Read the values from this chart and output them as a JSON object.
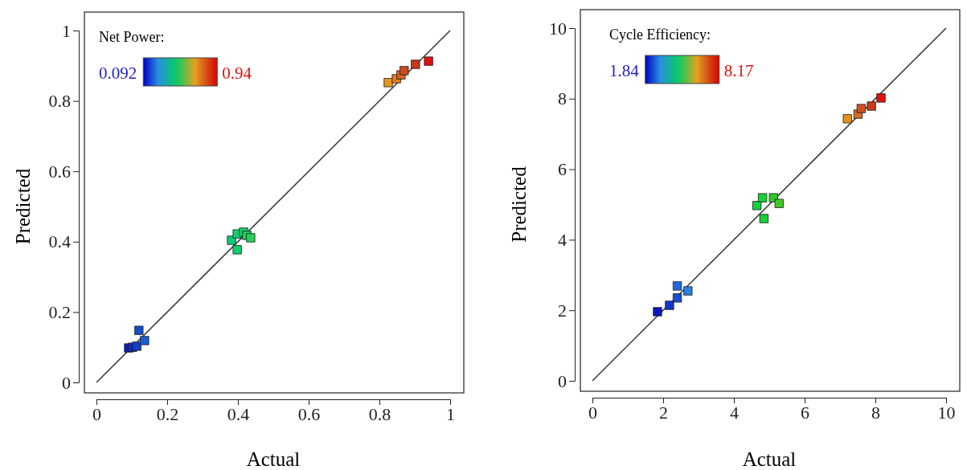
{
  "chart_data": [
    {
      "type": "scatter",
      "xlabel": "Actual",
      "ylabel": "Predicted",
      "clabel": "Net Power:",
      "annotations": [
        "0.092",
        "0.94"
      ],
      "marker": "square",
      "grid": false,
      "xlim": [
        0,
        1
      ],
      "ylim": [
        0,
        1
      ],
      "xticks": [
        0,
        0.2,
        0.4,
        0.6,
        0.8,
        1
      ],
      "yticks": [
        0,
        0.2,
        0.4,
        0.6,
        0.8,
        1
      ],
      "series": [
        {
          "type": "line",
          "marker": "none",
          "color": "#333333",
          "x": [
            0,
            1
          ],
          "values": [
            0,
            1
          ]
        },
        {
          "x": [
            0.091,
            0.102,
            0.114,
            0.136,
            0.12,
            0.382,
            0.398,
            0.416,
            0.425,
            0.436,
            0.398,
            0.825,
            0.848,
            0.861,
            0.87,
            0.902,
            0.939
          ],
          "values": [
            0.098,
            0.1,
            0.103,
            0.119,
            0.148,
            0.404,
            0.422,
            0.427,
            0.418,
            0.411,
            0.377,
            0.852,
            0.863,
            0.874,
            0.886,
            0.904,
            0.913
          ],
          "colors": [
            "#0a1cc0",
            "#0c2cc4",
            "#1040c8",
            "#1a60d4",
            "#1450cc",
            "#10c878",
            "#10d070",
            "#18d068",
            "#20d060",
            "#28d058",
            "#10d070",
            "#e89820",
            "#e07c20",
            "#d86420",
            "#cc4c1c",
            "#c8381a",
            "#e01010"
          ]
        }
      ]
    },
    {
      "type": "scatter",
      "xlabel": "Actual",
      "ylabel": "Predicted",
      "clabel": "Cycle Efficiency:",
      "annotations": [
        "1.84",
        "8.17"
      ],
      "marker": "square",
      "grid": false,
      "xlim": [
        0,
        10
      ],
      "ylim": [
        0,
        10
      ],
      "xticks": [
        0,
        2,
        4,
        6,
        8,
        10
      ],
      "yticks": [
        0,
        2,
        4,
        6,
        8,
        10
      ],
      "series": [
        {
          "type": "line",
          "marker": "none",
          "color": "#333333",
          "x": [
            0,
            10
          ],
          "values": [
            0,
            10
          ]
        },
        {
          "x": [
            1.84,
            2.18,
            2.4,
            2.4,
            2.7,
            4.65,
            4.81,
            5.12,
            5.28,
            4.85,
            7.21,
            7.51,
            7.6,
            7.89,
            8.16
          ],
          "values": [
            1.96,
            2.14,
            2.35,
            2.69,
            2.55,
            4.97,
            5.19,
            5.19,
            5.03,
            4.6,
            7.43,
            7.56,
            7.72,
            7.79,
            8.02
          ],
          "colors": [
            "#0818c0",
            "#1038c8",
            "#1850d0",
            "#2068dc",
            "#2a80e0",
            "#10d040",
            "#18d038",
            "#30c830",
            "#40c828",
            "#18d038",
            "#e89020",
            "#d86820",
            "#d05020",
            "#c83c1c",
            "#e01010"
          ]
        }
      ]
    }
  ]
}
